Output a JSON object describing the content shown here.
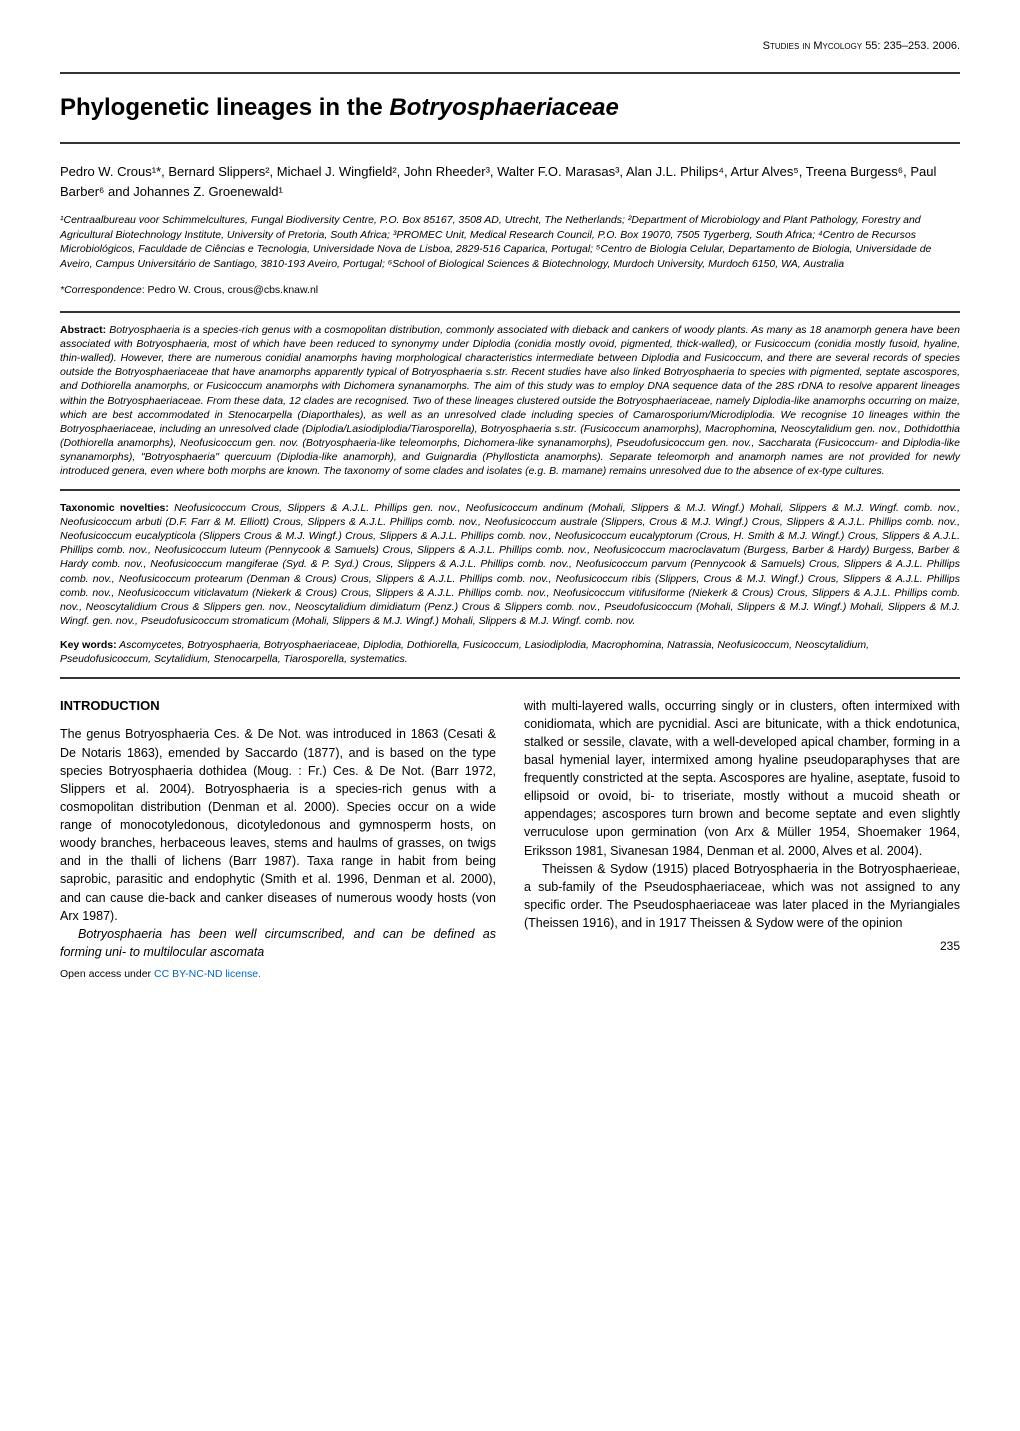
{
  "header": {
    "journal_caps": "Studies in Mycology",
    "citation": "55: 235–253. 2006."
  },
  "title": {
    "pre": "Phylogenetic lineages in the ",
    "italic": "Botryosphaeriaceae"
  },
  "authors": "Pedro W. Crous¹*, Bernard Slippers², Michael J. Wingfield², John Rheeder³, Walter F.O. Marasas³, Alan J.L. Philips⁴, Artur Alves⁵, Treena Burgess⁶, Paul Barber⁶ and Johannes Z. Groenewald¹",
  "affiliations": "¹Centraalbureau voor Schimmelcultures, Fungal Biodiversity Centre, P.O. Box 85167, 3508 AD, Utrecht, The Netherlands; ²Department of Microbiology and Plant Pathology, Forestry and Agricultural Biotechnology Institute, University of Pretoria, South Africa; ³PROMEC Unit, Medical Research Council, P.O. Box 19070, 7505 Tygerberg, South Africa; ⁴Centro de Recursos Microbiológicos, Faculdade de Ciências e Tecnologia, Universidade Nova de Lisboa, 2829-516 Caparica, Portugal; ⁵Centro de Biologia Celular, Departamento de Biologia, Universidade de Aveiro, Campus Universitário de Santiago, 3810-193 Aveiro, Portugal; ⁶School of Biological Sciences & Biotechnology, Murdoch University, Murdoch 6150, WA, Australia",
  "correspondence": {
    "label": "*Correspondence",
    "text": ": Pedro W. Crous, crous@cbs.knaw.nl"
  },
  "abstract": {
    "label": "Abstract:",
    "text": " Botryosphaeria is a species-rich genus with a cosmopolitan distribution, commonly associated with dieback and cankers of woody plants. As many as 18 anamorph genera have been associated with Botryosphaeria, most of which have been reduced to synonymy under Diplodia (conidia mostly ovoid, pigmented, thick-walled), or Fusicoccum (conidia mostly fusoid, hyaline, thin-walled). However, there are numerous conidial anamorphs having morphological characteristics intermediate between Diplodia and Fusicoccum, and there are several records of species outside the Botryosphaeriaceae that have anamorphs apparently typical of Botryosphaeria s.str. Recent studies have also linked Botryosphaeria to species with pigmented, septate ascospores, and Dothiorella anamorphs, or Fusicoccum anamorphs with Dichomera synanamorphs. The aim of this study was to employ DNA sequence data of the 28S rDNA to resolve apparent lineages within the Botryosphaeriaceae. From these data, 12 clades are recognised. Two of these lineages clustered outside the Botryosphaeriaceae, namely Diplodia-like anamorphs occurring on maize, which are best accommodated in Stenocarpella (Diaporthales), as well as an unresolved clade including species of Camarosporium/Microdiplodia. We recognise 10 lineages within the Botryosphaeriaceae, including an unresolved clade (Diplodia/Lasiodiplodia/Tiarosporella), Botryosphaeria s.str. (Fusicoccum anamorphs), Macrophomina, Neoscytalidium gen. nov., Dothidotthia (Dothiorella anamorphs), Neofusicoccum gen. nov. (Botryosphaeria-like teleomorphs, Dichomera-like synanamorphs), Pseudofusicoccum gen. nov., Saccharata (Fusicoccum- and Diplodia-like synanamorphs), \"Botryosphaeria\" quercuum (Diplodia-like anamorph), and Guignardia (Phyllosticta anamorphs). Separate teleomorph and anamorph names are not provided for newly introduced genera, even where both morphs are known. The taxonomy of some clades and isolates (e.g. B. mamane) remains unresolved due to the absence of ex-type cultures."
  },
  "novelties": {
    "label": "Taxonomic novelties:",
    "text": " Neofusicoccum Crous, Slippers & A.J.L. Phillips gen. nov., Neofusicoccum andinum (Mohali, Slippers & M.J. Wingf.) Mohali, Slippers & M.J. Wingf. comb. nov., Neofusicoccum arbuti (D.F. Farr & M. Elliott) Crous, Slippers & A.J.L. Phillips comb. nov., Neofusicoccum australe (Slippers, Crous & M.J. Wingf.) Crous, Slippers & A.J.L. Phillips comb. nov., Neofusicoccum eucalypticola (Slippers Crous & M.J. Wingf.) Crous, Slippers & A.J.L. Phillips comb. nov., Neofusicoccum eucalyptorum (Crous, H. Smith & M.J. Wingf.) Crous, Slippers & A.J.L. Phillips comb. nov., Neofusicoccum luteum (Pennycook & Samuels) Crous, Slippers & A.J.L. Phillips comb. nov., Neofusicoccum macroclavatum (Burgess, Barber & Hardy) Burgess, Barber & Hardy comb. nov., Neofusicoccum mangiferae (Syd. & P. Syd.) Crous, Slippers & A.J.L. Phillips comb. nov., Neofusicoccum parvum (Pennycook & Samuels) Crous, Slippers & A.J.L. Phillips comb. nov., Neofusicoccum protearum (Denman & Crous) Crous, Slippers & A.J.L. Phillips comb. nov., Neofusicoccum ribis (Slippers, Crous & M.J. Wingf.) Crous, Slippers & A.J.L. Phillips comb. nov., Neofusicoccum viticlavatum (Niekerk & Crous) Crous, Slippers & A.J.L. Phillips comb. nov., Neofusicoccum vitifusiforme (Niekerk & Crous) Crous, Slippers & A.J.L. Phillips comb. nov., Neoscytalidium Crous & Slippers gen. nov., Neoscytalidium dimidiatum (Penz.) Crous & Slippers comb. nov., Pseudofusicoccum (Mohali, Slippers & M.J. Wingf.) Mohali, Slippers & M.J. Wingf. gen. nov., Pseudofusicoccum stromaticum (Mohali, Slippers & M.J. Wingf.) Mohali, Slippers & M.J. Wingf. comb. nov."
  },
  "keywords": {
    "label": "Key words:",
    "text": " Ascomycetes, Botryosphaeria, Botryosphaeriaceae, Diplodia, Dothiorella, Fusicoccum, Lasiodiplodia, Macrophomina, Natrassia, Neofusicoccum, Neoscytalidium, Pseudofusicoccum, Scytalidium, Stenocarpella, Tiarosporella, systematics."
  },
  "intro": {
    "heading": "INTRODUCTION",
    "left_p1": "The genus Botryosphaeria Ces. & De Not. was introduced in 1863 (Cesati & De Notaris 1863), emended by Saccardo (1877), and is based on the type species Botryosphaeria dothidea (Moug. : Fr.) Ces. & De Not. (Barr 1972, Slippers et al. 2004). Botryosphaeria is a species-rich genus with a cosmopolitan distribution (Denman et al. 2000). Species occur on a wide range of monocotyledonous, dicotyledonous and gymnosperm hosts, on woody branches, herbaceous leaves, stems and haulms of grasses, on twigs and in the thalli of lichens (Barr 1987). Taxa range in habit from being saprobic, parasitic and endophytic (Smith et al. 1996, Denman et al. 2000), and can cause die-back and canker diseases of numerous woody hosts (von Arx 1987).",
    "left_p2": "Botryosphaeria has been well circumscribed, and can be defined as forming uni- to multilocular ascomata",
    "right_p1": "with multi-layered walls, occurring singly or in clusters, often intermixed with conidiomata, which are pycnidial. Asci are bitunicate, with a thick endotunica, stalked or sessile, clavate, with a well-developed apical chamber, forming in a basal hymenial layer, intermixed among hyaline pseudoparaphyses that are frequently constricted at the septa. Ascospores are hyaline, aseptate, fusoid to ellipsoid or ovoid, bi- to triseriate, mostly without a mucoid sheath or appendages; ascospores turn brown and become septate and even slightly verruculose upon germination (von Arx & Müller 1954, Shoemaker 1964, Eriksson 1981, Sivanesan 1984, Denman et al. 2000, Alves et al. 2004).",
    "right_p2": "Theissen & Sydow (1915) placed Botryosphaeria in the Botryosphaerieae, a sub-family of the Pseudosphaeriaceae, which was not assigned to any specific order. The Pseudosphaeriaceae was later placed in the Myriangiales (Theissen 1916), and in 1917 Theissen & Sydow were of the opinion"
  },
  "footer": {
    "license_pre": "Open access under ",
    "license_link": "CC BY-NC-ND license.",
    "page": "235"
  }
}
